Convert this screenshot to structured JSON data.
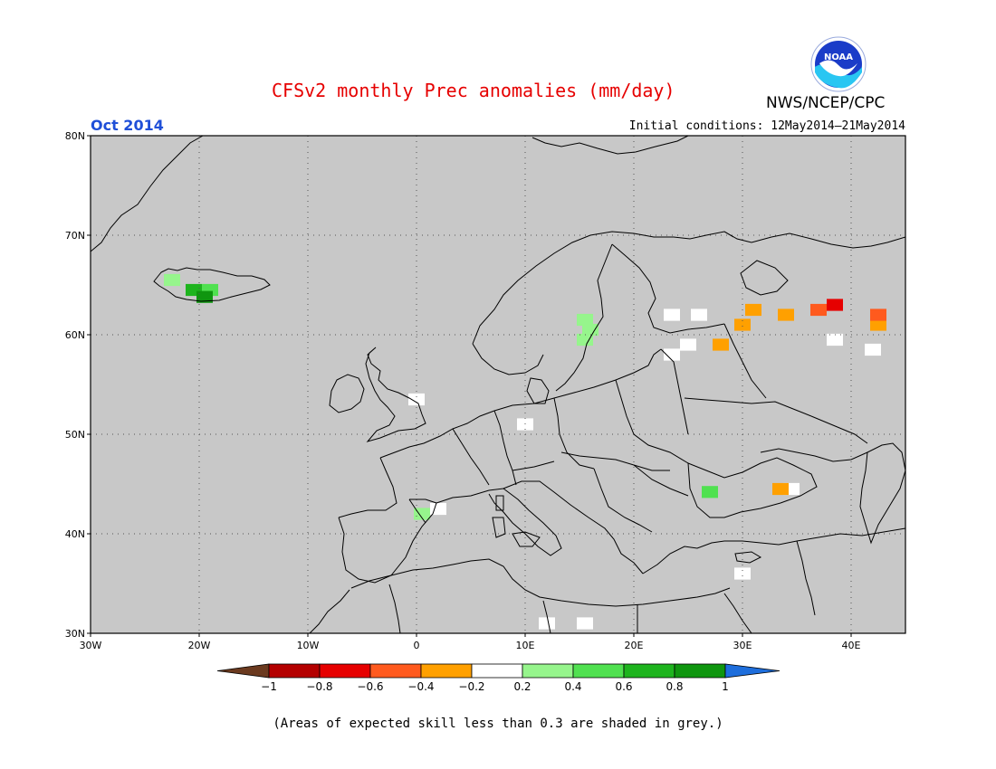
{
  "header": {
    "title": "CFSv2 monthly Prec anomalies (mm/day)",
    "agency": "NWS/NCEP/CPC",
    "logo_text": "NOAA",
    "period": "Oct 2014",
    "initial_conditions": "Initial conditions: 12May2014–21May2014"
  },
  "map": {
    "background_color": "#c8c8c8",
    "grid": "dotted",
    "lat_labels": [
      "80N",
      "70N",
      "60N",
      "50N",
      "40N",
      "30N"
    ],
    "lon_labels": [
      "30W",
      "20W",
      "10W",
      "0",
      "10E",
      "20E",
      "30E",
      "40E"
    ]
  },
  "colorbar": {
    "labels": [
      "−1",
      "−0.8",
      "−0.6",
      "−0.4",
      "−0.2",
      "0.2",
      "0.4",
      "0.6",
      "0.8",
      "1"
    ],
    "colors": [
      "#6b3a1f",
      "#b40000",
      "#e60000",
      "#ff5a1e",
      "#ffa000",
      "#ffffff",
      "#96f58c",
      "#50e150",
      "#1eb41e",
      "#0f960f",
      "#1e6edc"
    ]
  },
  "anomaly_cells": [
    {
      "lat": 65.5,
      "lon": -22.5,
      "color": "#96f58c"
    },
    {
      "lat": 64.5,
      "lon": -20.5,
      "color": "#1eb41e"
    },
    {
      "lat": 64.5,
      "lon": -19.0,
      "color": "#50e150"
    },
    {
      "lat": 63.8,
      "lon": -19.5,
      "color": "#0f960f"
    },
    {
      "lat": 61.5,
      "lon": 15.5,
      "color": "#96f58c"
    },
    {
      "lat": 60.5,
      "lon": 16.0,
      "color": "#96f58c"
    },
    {
      "lat": 59.5,
      "lon": 15.5,
      "color": "#96f58c"
    },
    {
      "lat": 42.0,
      "lon": 0.5,
      "color": "#96f58c"
    },
    {
      "lat": 44.2,
      "lon": 27.0,
      "color": "#50e150"
    },
    {
      "lat": 51.0,
      "lon": 10.0,
      "color": "#ffffff"
    },
    {
      "lat": 53.5,
      "lon": 0.0,
      "color": "#ffffff"
    },
    {
      "lat": 42.5,
      "lon": 2.0,
      "color": "#ffffff"
    },
    {
      "lat": 36.0,
      "lon": 30.0,
      "color": "#ffffff"
    },
    {
      "lat": 31.0,
      "lon": 12.0,
      "color": "#ffffff"
    },
    {
      "lat": 31.0,
      "lon": 15.5,
      "color": "#ffffff"
    },
    {
      "lat": 62.0,
      "lon": 23.5,
      "color": "#ffffff"
    },
    {
      "lat": 62.0,
      "lon": 26.0,
      "color": "#ffffff"
    },
    {
      "lat": 59.0,
      "lon": 25.0,
      "color": "#ffffff"
    },
    {
      "lat": 58.0,
      "lon": 23.5,
      "color": "#ffffff"
    },
    {
      "lat": 59.5,
      "lon": 38.5,
      "color": "#ffffff"
    },
    {
      "lat": 58.5,
      "lon": 42.0,
      "color": "#ffffff"
    },
    {
      "lat": 44.5,
      "lon": 34.5,
      "color": "#ffffff"
    },
    {
      "lat": 62.5,
      "lon": 31.0,
      "color": "#ffa000"
    },
    {
      "lat": 61.0,
      "lon": 30.0,
      "color": "#ffa000"
    },
    {
      "lat": 62.0,
      "lon": 34.0,
      "color": "#ffa000"
    },
    {
      "lat": 61.0,
      "lon": 42.5,
      "color": "#ffa000"
    },
    {
      "lat": 59.0,
      "lon": 28.0,
      "color": "#ffa000"
    },
    {
      "lat": 44.5,
      "lon": 33.5,
      "color": "#ffa000"
    },
    {
      "lat": 62.5,
      "lon": 37.0,
      "color": "#ff5a1e"
    },
    {
      "lat": 62.0,
      "lon": 42.5,
      "color": "#ff5a1e"
    },
    {
      "lat": 63.0,
      "lon": 38.5,
      "color": "#e60000"
    }
  ]
}
